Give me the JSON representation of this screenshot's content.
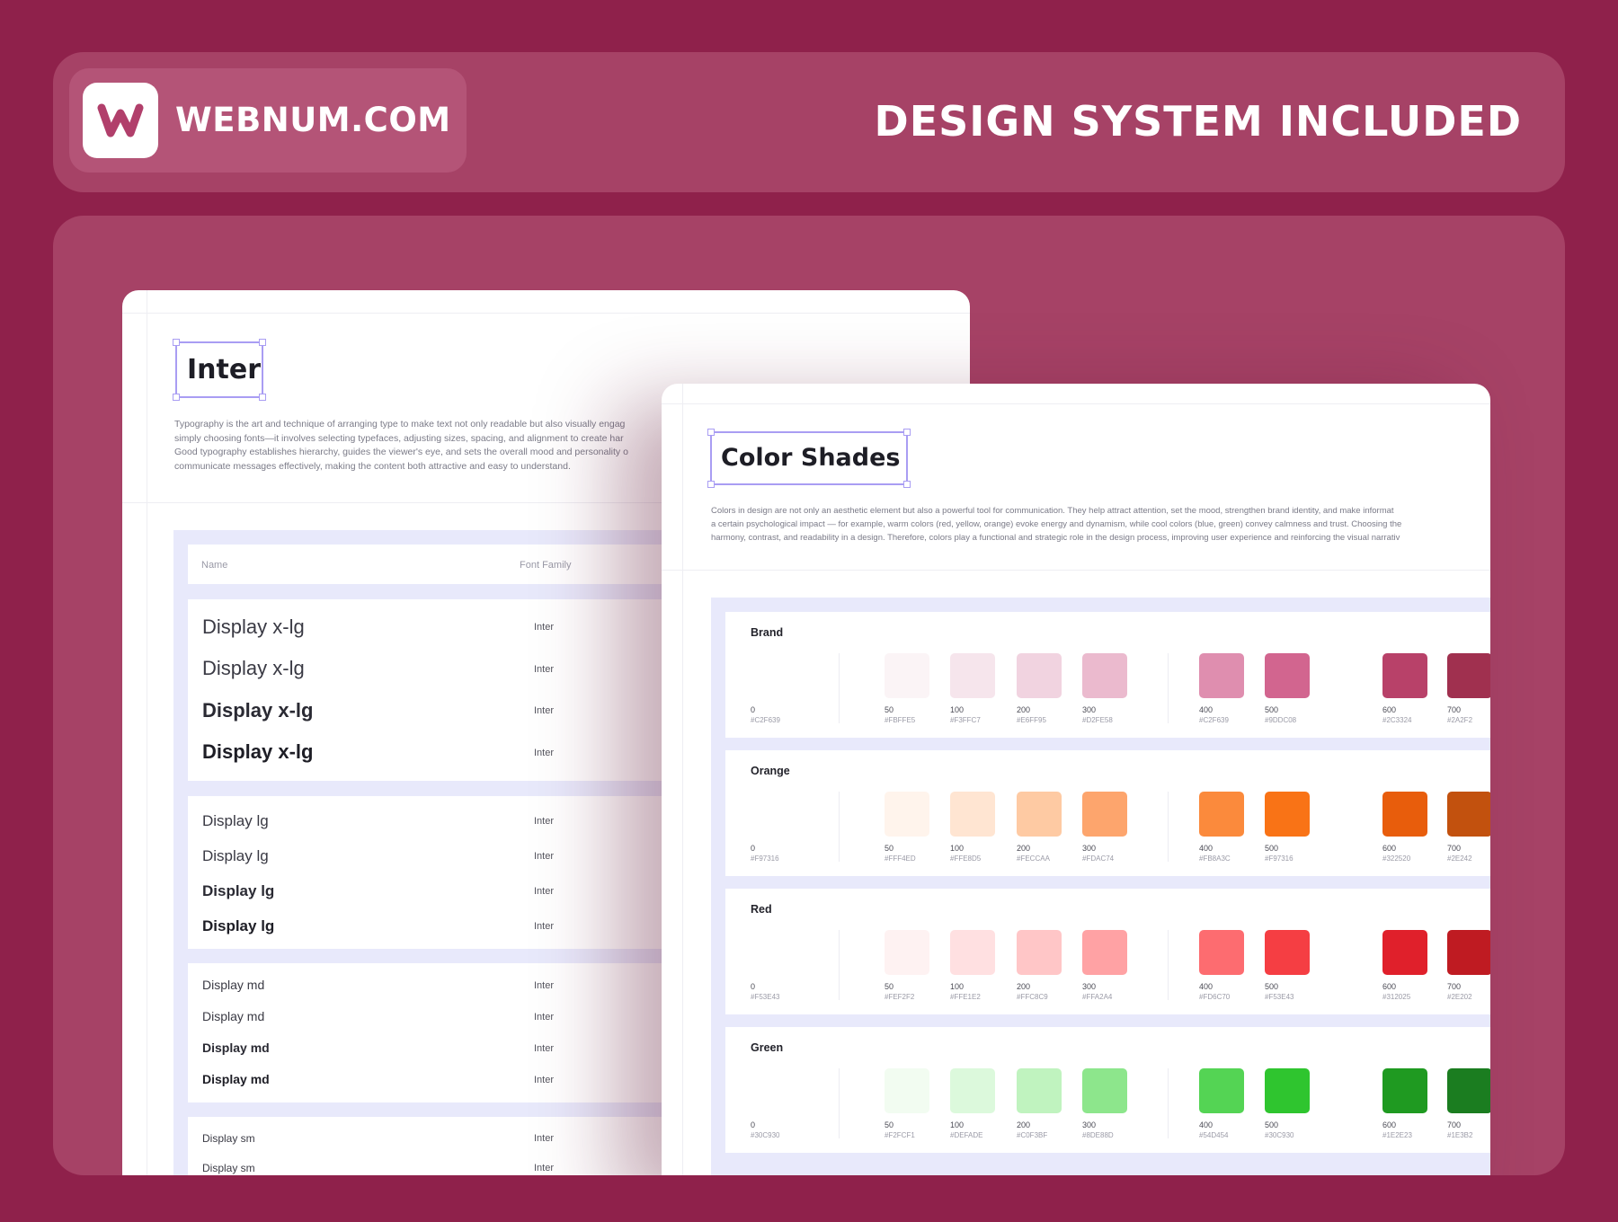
{
  "header": {
    "brand": "WEBNUM.COM",
    "headline": "DESIGN SYSTEM INCLUDED",
    "logo_icon": "w-logo-icon"
  },
  "typography": {
    "title": "Inter",
    "description": [
      "Typography is the art and technique of arranging type to make text not only readable but also visually engag",
      "simply choosing fonts—it involves selecting typefaces, adjusting sizes, spacing, and alignment to create har",
      "Good typography establishes hierarchy, guides the viewer's eye, and sets the overall mood and personality o",
      "communicate messages effectively, making the content both attractive and easy to understand."
    ],
    "headers": {
      "name": "Name",
      "font_family": "Font Family"
    },
    "groups": [
      {
        "rows": [
          {
            "name": "Display x-lg",
            "family": "Inter"
          },
          {
            "name": "Display x-lg",
            "family": "Inter"
          },
          {
            "name": "Display x-lg",
            "family": "Inter"
          },
          {
            "name": "Display x-lg",
            "family": "Inter"
          }
        ]
      },
      {
        "rows": [
          {
            "name": "Display lg",
            "family": "Inter"
          },
          {
            "name": "Display lg",
            "family": "Inter"
          },
          {
            "name": "Display lg",
            "family": "Inter"
          },
          {
            "name": "Display lg",
            "family": "Inter"
          }
        ]
      },
      {
        "rows": [
          {
            "name": "Display md",
            "family": "Inter"
          },
          {
            "name": "Display md",
            "family": "Inter"
          },
          {
            "name": "Display md",
            "family": "Inter"
          },
          {
            "name": "Display md",
            "family": "Inter"
          }
        ]
      },
      {
        "rows": [
          {
            "name": "Display sm",
            "family": "Inter"
          },
          {
            "name": "Display sm",
            "family": "Inter"
          }
        ]
      }
    ]
  },
  "colors": {
    "title": "Color Shades",
    "description": [
      "Colors in design are not only an aesthetic element but also a powerful tool for communication. They help attract attention, set the mood, strengthen brand identity, and make informat",
      "a certain psychological impact — for example, warm colors (red, yellow, orange) evoke energy and dynamism, while cool colors (blue, green) convey calmness and trust. Choosing the",
      "harmony, contrast, and readability in a design. Therefore, colors play a functional and strategic role in the design process, improving user experience and reinforcing the visual narrativ"
    ],
    "groups": [
      {
        "name": "Brand",
        "base_label": "0",
        "base_hex": "#C2F639",
        "shades": [
          {
            "label": "50",
            "hex": "#FBFFE5",
            "color": "#fbf4f6"
          },
          {
            "label": "100",
            "hex": "#F3FFC7",
            "color": "#f6e5ec"
          },
          {
            "label": "200",
            "hex": "#E6FF95",
            "color": "#f1d3e0"
          },
          {
            "label": "300",
            "hex": "#D2FE58",
            "color": "#ebbace"
          },
          {
            "label": "400",
            "hex": "#C2F639",
            "color": "#df8eaf"
          },
          {
            "label": "500",
            "hex": "#9DDC08",
            "color": "#d2658f"
          },
          {
            "label": "600",
            "hex": "#2C3324",
            "color": "#b84169"
          },
          {
            "label": "700",
            "hex": "#2A2F2",
            "color": "#a0304f"
          }
        ]
      },
      {
        "name": "Orange",
        "base_label": "0",
        "base_hex": "#F97316",
        "shades": [
          {
            "label": "50",
            "hex": "#FFF4ED",
            "color": "#fff4ec"
          },
          {
            "label": "100",
            "hex": "#FFE8D5",
            "color": "#ffe5d2"
          },
          {
            "label": "200",
            "hex": "#FECCAA",
            "color": "#fecaa3"
          },
          {
            "label": "300",
            "hex": "#FDAC74",
            "color": "#fda56d"
          },
          {
            "label": "400",
            "hex": "#FB8A3C",
            "color": "#fb8a3c"
          },
          {
            "label": "500",
            "hex": "#F97316",
            "color": "#f97316"
          },
          {
            "label": "600",
            "hex": "#322520",
            "color": "#e85d0c"
          },
          {
            "label": "700",
            "hex": "#2E242",
            "color": "#c2510e"
          }
        ]
      },
      {
        "name": "Red",
        "base_label": "0",
        "base_hex": "#F53E43",
        "shades": [
          {
            "label": "50",
            "hex": "#FEF2F2",
            "color": "#fef2f2"
          },
          {
            "label": "100",
            "hex": "#FFE1E2",
            "color": "#ffe0e1"
          },
          {
            "label": "200",
            "hex": "#FFC8C9",
            "color": "#ffc6c7"
          },
          {
            "label": "300",
            "hex": "#FFA2A4",
            "color": "#ffa2a4"
          },
          {
            "label": "400",
            "hex": "#FD6C70",
            "color": "#fd6c70"
          },
          {
            "label": "500",
            "hex": "#F53E43",
            "color": "#f53e43"
          },
          {
            "label": "600",
            "hex": "#312025",
            "color": "#e0202b"
          },
          {
            "label": "700",
            "hex": "#2E202",
            "color": "#bf1b22"
          }
        ]
      },
      {
        "name": "Green",
        "base_label": "0",
        "base_hex": "#30C930",
        "shades": [
          {
            "label": "50",
            "hex": "#F2FCF1",
            "color": "#f2fcf1"
          },
          {
            "label": "100",
            "hex": "#DEFADE",
            "color": "#dcf9dc"
          },
          {
            "label": "200",
            "hex": "#C0F3BF",
            "color": "#c0f3bf"
          },
          {
            "label": "300",
            "hex": "#8DE88D",
            "color": "#8de68c"
          },
          {
            "label": "400",
            "hex": "#54D454",
            "color": "#54d454"
          },
          {
            "label": "500",
            "hex": "#30C930",
            "color": "#2fc52f"
          },
          {
            "label": "600",
            "hex": "#1E2E23",
            "color": "#1f9a21"
          },
          {
            "label": "700",
            "hex": "#1E3B2",
            "color": "#1b7d20"
          }
        ]
      }
    ]
  }
}
